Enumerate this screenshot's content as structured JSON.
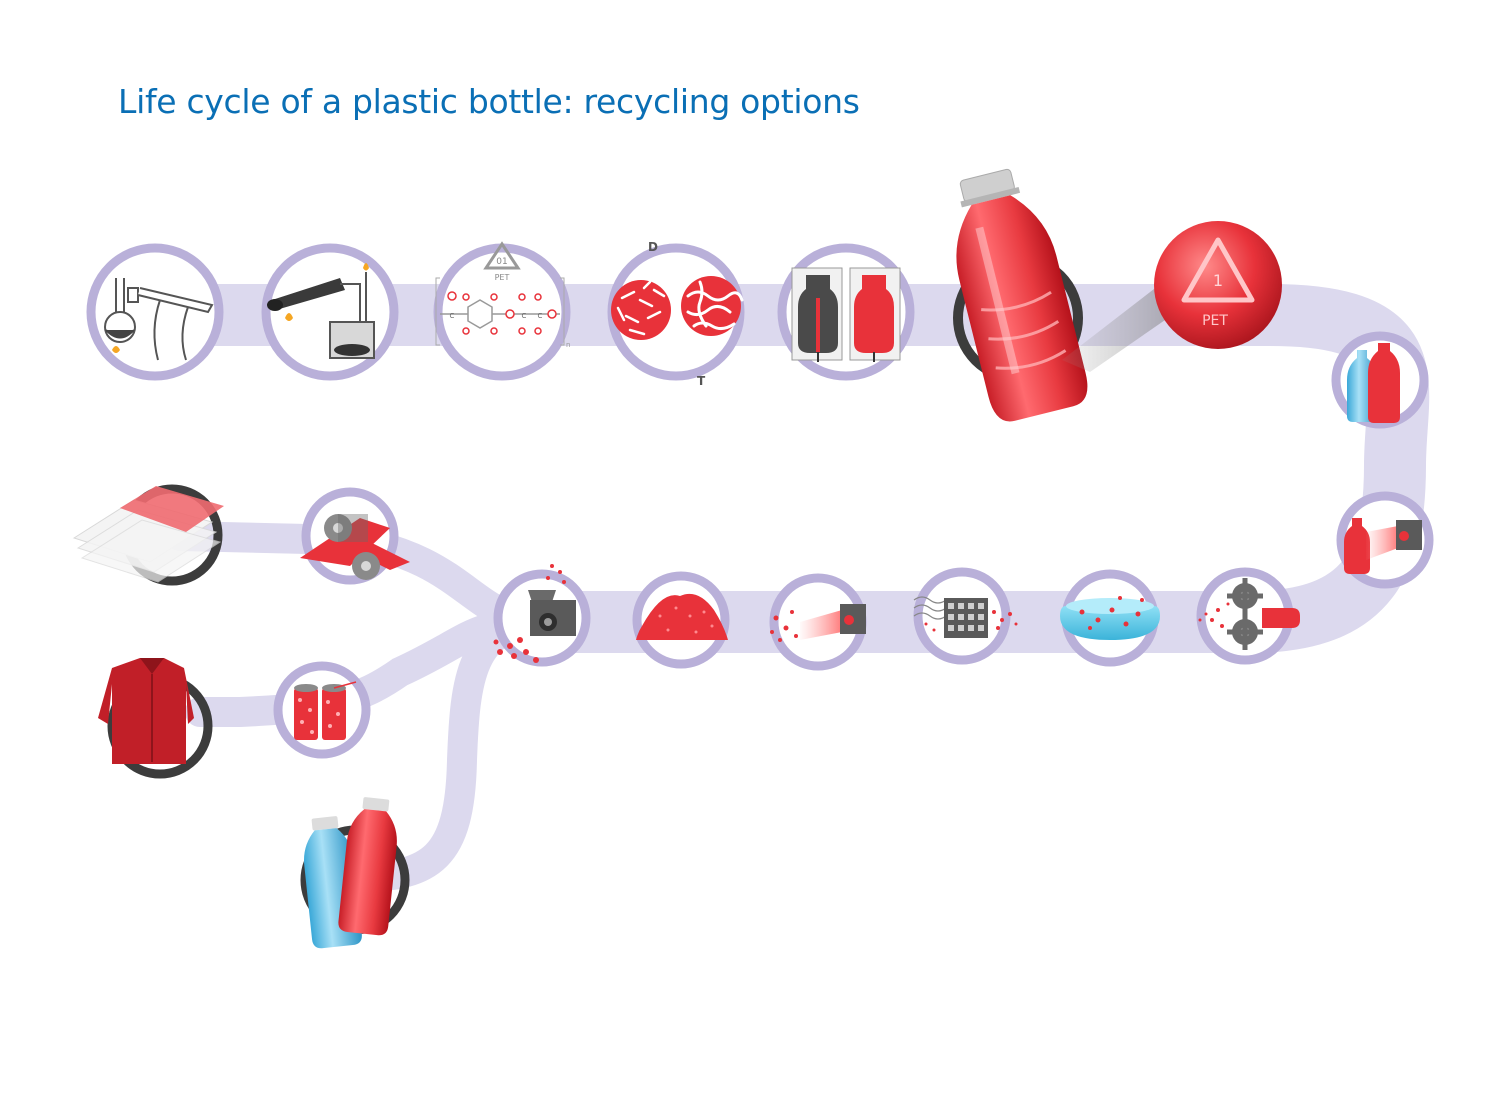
{
  "title": "Life cycle of a plastic bottle: recycling options",
  "colors": {
    "title": "#0a6fb5",
    "path": "#dcd9ee",
    "ring": "#b9b0d9",
    "accent_red": "#e8323a",
    "dark_ring": "#3c3c3c",
    "blue": "#5fc0e6",
    "grey": "#5a5a5a"
  },
  "labels": {
    "recycle_code": "01",
    "recycle_material": "PET",
    "zoom_code": "1",
    "zoom_material": "PET",
    "panel_d": "D",
    "panel_t": "T",
    "atom_c": "C",
    "atom_h": "H",
    "atom_o": "O",
    "repeat_n": "n"
  },
  "icons": [
    "distillation-apparatus-icon",
    "heated-reactor-icon",
    "pet-molecule-icon",
    "polymer-chains-icon",
    "blow-molding-icon",
    "red-bottle-icon",
    "pet-symbol-zoom-icon",
    "bottle-collection-icon",
    "bottle-scanner-icon",
    "shredder-gears-icon",
    "washing-bath-icon",
    "sorting-grid-icon",
    "flake-scanner-icon",
    "pellet-piles-icon",
    "extruder-icon",
    "film-rollers-icon",
    "plastic-sheets-icon",
    "fiber-spools-icon",
    "fleece-jacket-icon",
    "new-bottles-icon"
  ]
}
